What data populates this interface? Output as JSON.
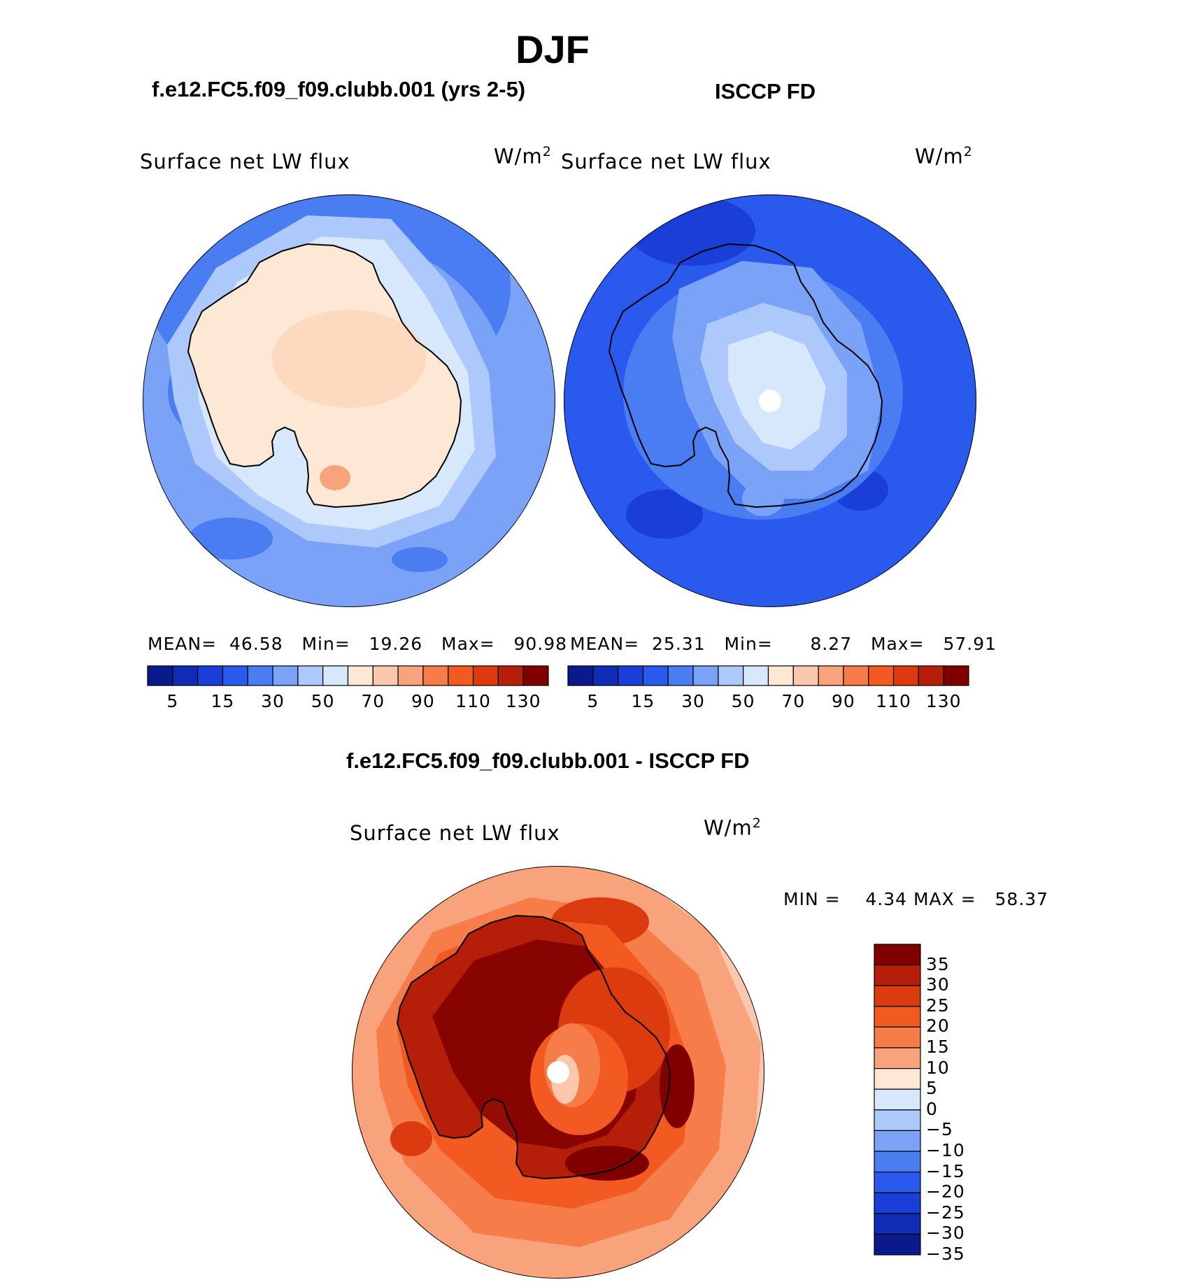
{
  "title": "DJF",
  "panels": [
    {
      "id": "model",
      "heading": "f.e12.FC5.f09_f09.clubb.001 (yrs 2-5)",
      "variable": "Surface net LW flux",
      "units": "W/m",
      "units_exp": "2",
      "stats": {
        "mean_label": "MEAN=",
        "mean": "46.58",
        "min_label": "Min=",
        "min": "19.26",
        "max_label": "Max=",
        "max": "90.98"
      }
    },
    {
      "id": "obs",
      "heading": "ISCCP FD",
      "variable": "Surface net LW flux",
      "units": "W/m",
      "units_exp": "2",
      "stats": {
        "mean_label": "MEAN=",
        "mean": "25.31",
        "min_label": "Min=",
        "min": "8.27",
        "max_label": "Max=",
        "max": "57.91"
      }
    },
    {
      "id": "diff",
      "heading": "f.e12.FC5.f09_f09.clubb.001 - ISCCP FD",
      "variable": "Surface net LW flux",
      "units": "W/m",
      "units_exp": "2",
      "stats": {
        "min_label": "MIN =",
        "min": "4.34",
        "max_label": "MAX =",
        "max": "58.37"
      }
    }
  ],
  "colorbar_abs": {
    "colors": [
      "#0a1a8c",
      "#0f2cb4",
      "#1a3fd9",
      "#2a5aed",
      "#4a7cf2",
      "#7aa2f7",
      "#adc8fb",
      "#d7e8fd",
      "#fde8d6",
      "#fcc8ad",
      "#f9a37c",
      "#f67d4a",
      "#f25a21",
      "#dc3a0f",
      "#b51f0a",
      "#800000"
    ],
    "labels": [
      "5",
      "15",
      "30",
      "50",
      "70",
      "90",
      "110",
      "130"
    ]
  },
  "colorbar_diff": {
    "colors": [
      "#800000",
      "#b51f0a",
      "#dc3a0f",
      "#f25a21",
      "#f67d4a",
      "#f9a37c",
      "#fde8d6",
      "#d7e8fd",
      "#adc8fb",
      "#7aa2f7",
      "#4a7cf2",
      "#2a5aed",
      "#1a3fd9",
      "#0f2cb4",
      "#0a1a8c"
    ],
    "labels": [
      "35",
      "30",
      "25",
      "20",
      "15",
      "10",
      "5",
      "0",
      "−5",
      "−10",
      "−15",
      "−20",
      "−25",
      "−30",
      "−35"
    ]
  }
}
